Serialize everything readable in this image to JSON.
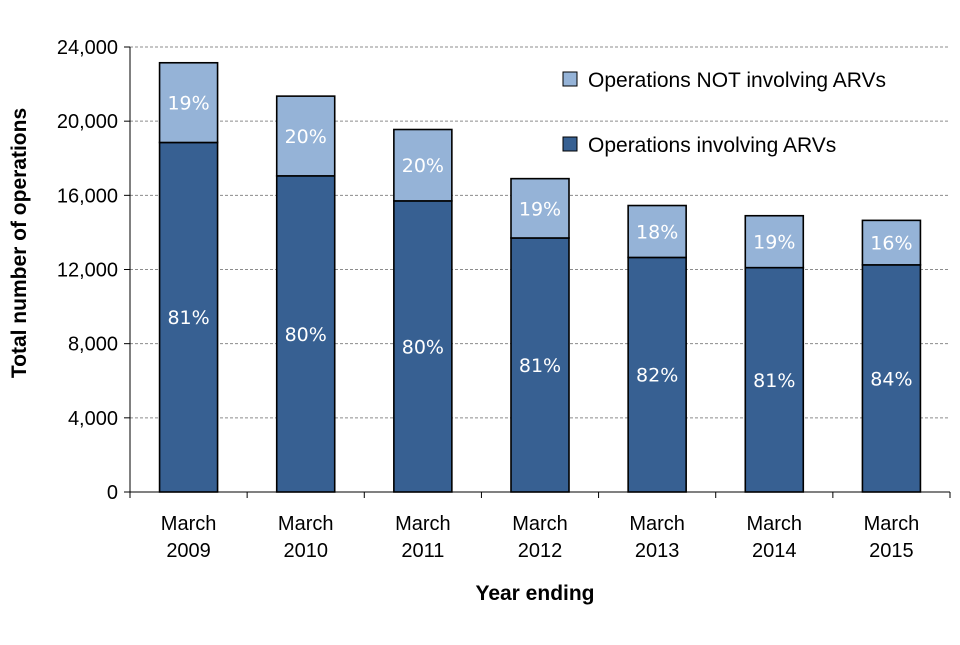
{
  "chart_data": {
    "type": "bar",
    "stacked": true,
    "title": "",
    "xlabel": "Year ending",
    "ylabel": "Total number of operations",
    "ylim": [
      0,
      24000
    ],
    "yticks": [
      0,
      4000,
      8000,
      12000,
      16000,
      20000,
      24000
    ],
    "ytick_labels": [
      "0",
      "4,000",
      "8,000",
      "12,000",
      "16,000",
      "20,000",
      "24,000"
    ],
    "grid": true,
    "legend_position": "top-right",
    "categories": [
      [
        "March",
        "2009"
      ],
      [
        "March",
        "2010"
      ],
      [
        "March",
        "2011"
      ],
      [
        "March",
        "2012"
      ],
      [
        "March",
        "2013"
      ],
      [
        "March",
        "2014"
      ],
      [
        "March",
        "2015"
      ]
    ],
    "series": [
      {
        "name": "Operations involving ARVs",
        "color": "#376092",
        "values": [
          18850,
          17050,
          15700,
          13700,
          12650,
          12100,
          12250
        ],
        "labels": [
          "81%",
          "80%",
          "80%",
          "81%",
          "82%",
          "81%",
          "84%"
        ]
      },
      {
        "name": "Operations NOT involving ARVs",
        "color": "#95B3D7",
        "values": [
          4300,
          4300,
          3850,
          3200,
          2800,
          2800,
          2400
        ],
        "labels": [
          "19%",
          "20%",
          "20%",
          "19%",
          "18%",
          "19%",
          "16%"
        ]
      }
    ],
    "legend_order": [
      1,
      0
    ]
  }
}
